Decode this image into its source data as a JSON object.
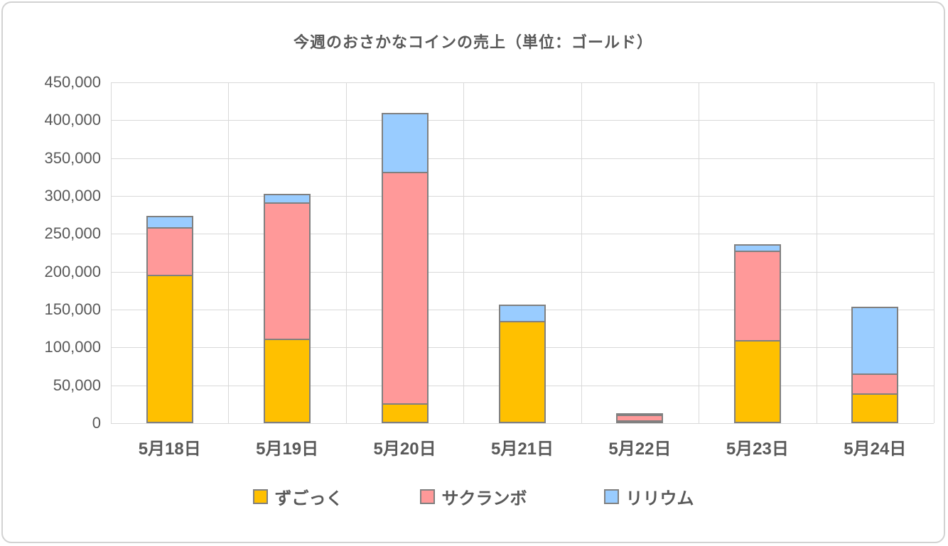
{
  "chart_data": {
    "type": "bar",
    "stacked": true,
    "title": "今週のおさかなコインの売上（単位：ゴールド）",
    "categories": [
      "5月18日",
      "5月19日",
      "5月20日",
      "5月21日",
      "5月22日",
      "5月23日",
      "5月24日"
    ],
    "series": [
      {
        "name": "ずごっく",
        "color": "#FFC000",
        "values": [
          196000,
          112000,
          26000,
          135000,
          3000,
          110000,
          39000
        ]
      },
      {
        "name": "サクランボ",
        "color": "#FF9999",
        "values": [
          63000,
          180000,
          306000,
          0,
          8000,
          118000,
          27000
        ]
      },
      {
        "name": "リリウム",
        "color": "#99CCFF",
        "values": [
          15000,
          11000,
          78000,
          22000,
          2000,
          8000,
          88000
        ]
      }
    ],
    "totals": [
      274000,
      303000,
      410000,
      157000,
      13000,
      236000,
      154000
    ],
    "ylim": [
      0,
      450000
    ],
    "ytick_step": 50000,
    "ytick_labels": [
      "0",
      "50,000",
      "100,000",
      "150,000",
      "200,000",
      "250,000",
      "300,000",
      "350,000",
      "400,000",
      "450,000"
    ],
    "grid": "horizontal and vertical gridlines",
    "legend_position": "bottom",
    "xlabel": "",
    "ylabel": ""
  },
  "colors": {
    "gridline": "#d9d9d9",
    "bar_border": "#808080",
    "text": "#595959",
    "frame_border": "#d2d2d2",
    "background": "#ffffff"
  }
}
